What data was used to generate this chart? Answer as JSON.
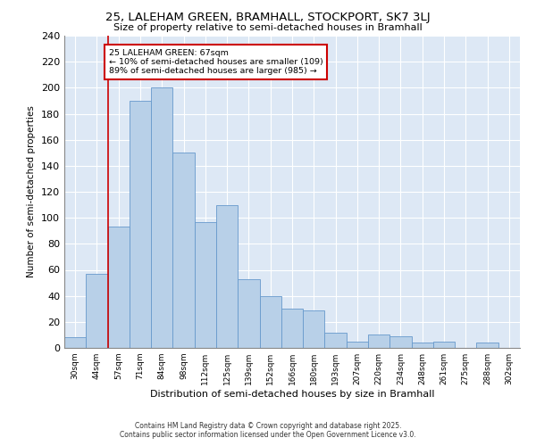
{
  "title1": "25, LALEHAM GREEN, BRAMHALL, STOCKPORT, SK7 3LJ",
  "title2": "Size of property relative to semi-detached houses in Bramhall",
  "xlabel": "Distribution of semi-detached houses by size in Bramhall",
  "ylabel": "Number of semi-detached properties",
  "categories": [
    "30sqm",
    "44sqm",
    "57sqm",
    "71sqm",
    "84sqm",
    "98sqm",
    "112sqm",
    "125sqm",
    "139sqm",
    "152sqm",
    "166sqm",
    "180sqm",
    "193sqm",
    "207sqm",
    "220sqm",
    "234sqm",
    "248sqm",
    "261sqm",
    "275sqm",
    "288sqm",
    "302sqm"
  ],
  "values": [
    8,
    57,
    93,
    190,
    200,
    150,
    97,
    110,
    53,
    40,
    30,
    29,
    12,
    5,
    10,
    9,
    4,
    5,
    0,
    4,
    0
  ],
  "bar_color": "#b8d0e8",
  "bar_edge_color": "#6699cc",
  "vline_x_index": 1.5,
  "vline_color": "#cc0000",
  "annotation_text": "25 LALEHAM GREEN: 67sqm\n← 10% of semi-detached houses are smaller (109)\n89% of semi-detached houses are larger (985) →",
  "annotation_box_color": "white",
  "annotation_box_edge": "#cc0000",
  "background_color": "#dde8f5",
  "grid_color": "#ffffff",
  "footer1": "Contains HM Land Registry data © Crown copyright and database right 2025.",
  "footer2": "Contains public sector information licensed under the Open Government Licence v3.0.",
  "ylim": [
    0,
    240
  ],
  "yticks": [
    0,
    20,
    40,
    60,
    80,
    100,
    120,
    140,
    160,
    180,
    200,
    220,
    240
  ]
}
